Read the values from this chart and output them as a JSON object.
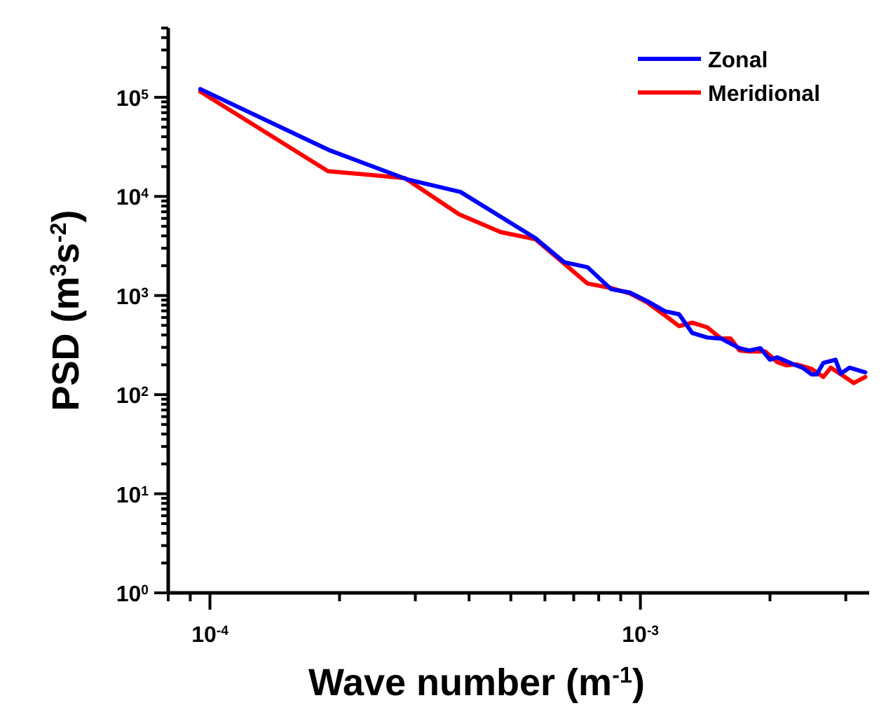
{
  "chart_data": {
    "type": "line",
    "xlabel": "Wave number (m$^{-1}$)",
    "ylabel": "PSD (m$^{3}$s$^{-2}$)",
    "log": "xy",
    "grid": false,
    "legend": "top right",
    "marker": "none",
    "line_style": "solid",
    "xlim": [
      8e-05,
      0.0034
    ],
    "ylim": [
      1,
      500000
    ],
    "xticks": [
      {
        "value": 0.0001,
        "label": "10$^{-4}$"
      },
      {
        "value": 0.001,
        "label": "10$^{-3}$"
      }
    ],
    "yticks": [
      {
        "value": 1,
        "label": "10$^{0}$"
      },
      {
        "value": 10,
        "label": "10$^{1}$"
      },
      {
        "value": 100,
        "label": "10$^{2}$"
      },
      {
        "value": 1000,
        "label": "10$^{3}$"
      },
      {
        "value": 10000,
        "label": "10$^{4}$"
      },
      {
        "value": 100000,
        "label": "10$^{5}$"
      }
    ],
    "series": [
      {
        "name": "Zonal",
        "color": "#0000ff",
        "x": [
          9.5e-05,
          0.00019,
          0.000288,
          0.000382,
          0.00057,
          0.000665,
          0.000754,
          0.000855,
          0.000945,
          0.00104,
          0.00114,
          0.00123,
          0.00132,
          0.00143,
          0.00154,
          0.0017,
          0.00179,
          0.0019,
          0.002,
          0.00208,
          0.00227,
          0.00238,
          0.0025,
          0.00257,
          0.00266,
          0.00284,
          0.00292,
          0.00306,
          0.00333
        ],
        "values": [
          121000,
          29100,
          14800,
          11100,
          3800,
          2170,
          1930,
          1160,
          1070,
          871,
          695,
          646,
          419,
          377,
          368,
          294,
          279,
          294,
          225,
          238,
          202,
          187,
          160,
          160,
          209,
          225,
          163,
          187,
          168
        ]
      },
      {
        "name": "Meridional",
        "color": "#ff0000",
        "x": [
          9.5e-05,
          0.000188,
          0.000284,
          0.000379,
          0.000474,
          0.00057,
          0.000665,
          0.000754,
          0.000855,
          0.000945,
          0.00104,
          0.00114,
          0.00123,
          0.00132,
          0.00143,
          0.00154,
          0.00162,
          0.0017,
          0.00179,
          0.00195,
          0.00208,
          0.00218,
          0.0023,
          0.0025,
          0.00266,
          0.00277,
          0.00295,
          0.00313,
          0.00333
        ],
        "values": [
          114000,
          18000,
          15300,
          6600,
          4360,
          3700,
          2100,
          1320,
          1190,
          1050,
          843,
          631,
          492,
          532,
          477,
          368,
          368,
          279,
          273,
          273,
          213,
          198,
          202,
          182,
          151,
          187,
          156,
          131,
          151
        ]
      }
    ]
  }
}
